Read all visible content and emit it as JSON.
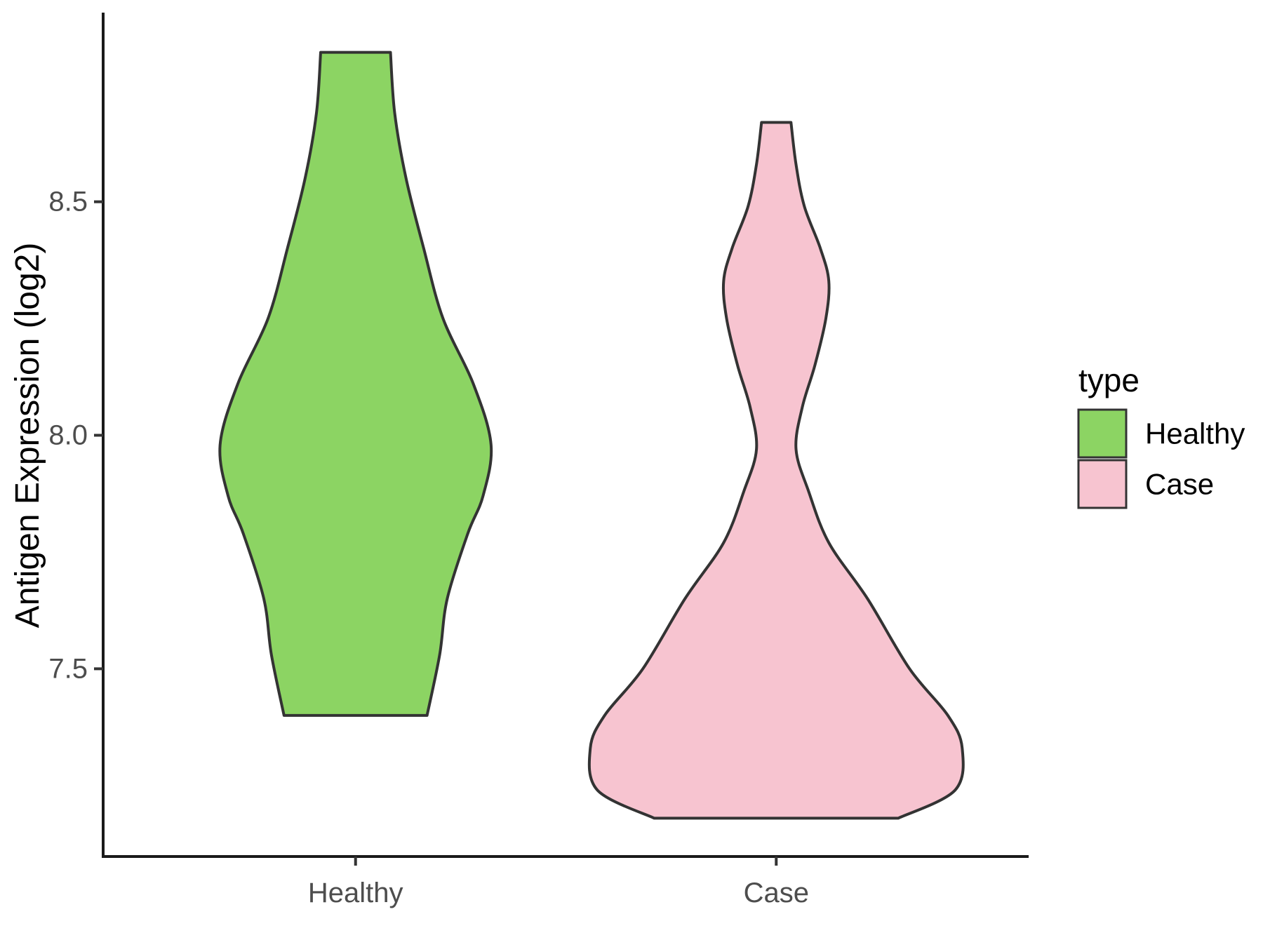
{
  "chart_data": {
    "type": "violin",
    "title": "",
    "xlabel": "",
    "ylabel": "Antigen Expression (log2)",
    "categories": [
      "Healthy",
      "Case"
    ],
    "x_positions": [
      1,
      2
    ],
    "xlim": [
      0.4,
      2.6
    ],
    "ylim": [
      7.098,
      8.902
    ],
    "y_ticks": [
      7.5,
      8.0,
      8.5
    ],
    "y_tick_labels": [
      "7.5",
      "8.0",
      "8.5"
    ],
    "grid": "off",
    "legend": {
      "title": "type",
      "position": "right",
      "entries": [
        {
          "label": "Healthy",
          "color": "#8cd463"
        },
        {
          "label": "Case",
          "color": "#f7c4d0"
        }
      ]
    },
    "series": [
      {
        "name": "Healthy",
        "color": "#8cd463",
        "center": 1,
        "value_range": [
          7.4,
          8.82
        ],
        "profile": [
          {
            "v": 8.82,
            "w": 0.083
          },
          {
            "v": 8.69,
            "w": 0.093
          },
          {
            "v": 8.55,
            "w": 0.12
          },
          {
            "v": 8.4,
            "w": 0.162
          },
          {
            "v": 8.25,
            "w": 0.208
          },
          {
            "v": 8.11,
            "w": 0.28
          },
          {
            "v": 7.98,
            "w": 0.322
          },
          {
            "v": 7.87,
            "w": 0.303
          },
          {
            "v": 7.79,
            "w": 0.267
          },
          {
            "v": 7.65,
            "w": 0.218
          },
          {
            "v": 7.53,
            "w": 0.2
          },
          {
            "v": 7.4,
            "w": 0.17
          }
        ]
      },
      {
        "name": "Case",
        "color": "#f7c4d0",
        "center": 2,
        "value_range": [
          7.18,
          8.67
        ],
        "profile": [
          {
            "v": 8.67,
            "w": 0.035
          },
          {
            "v": 8.58,
            "w": 0.047
          },
          {
            "v": 8.49,
            "w": 0.067
          },
          {
            "v": 8.4,
            "w": 0.105
          },
          {
            "v": 8.33,
            "w": 0.125
          },
          {
            "v": 8.25,
            "w": 0.118
          },
          {
            "v": 8.15,
            "w": 0.092
          },
          {
            "v": 8.06,
            "w": 0.062
          },
          {
            "v": 7.97,
            "w": 0.047
          },
          {
            "v": 7.88,
            "w": 0.077
          },
          {
            "v": 7.77,
            "w": 0.125
          },
          {
            "v": 7.65,
            "w": 0.217
          },
          {
            "v": 7.5,
            "w": 0.317
          },
          {
            "v": 7.4,
            "w": 0.408
          },
          {
            "v": 7.33,
            "w": 0.442
          },
          {
            "v": 7.24,
            "w": 0.425
          },
          {
            "v": 7.18,
            "w": 0.29
          }
        ]
      }
    ],
    "style": {
      "outline_color": "#333333",
      "outline_width": 4,
      "axis_color": "#1a1a1a",
      "tick_color": "#333333",
      "tick_label_color": "#4d4d4d",
      "title_color": "#000000",
      "legend_text_color": "#000000",
      "background": "#ffffff"
    }
  }
}
